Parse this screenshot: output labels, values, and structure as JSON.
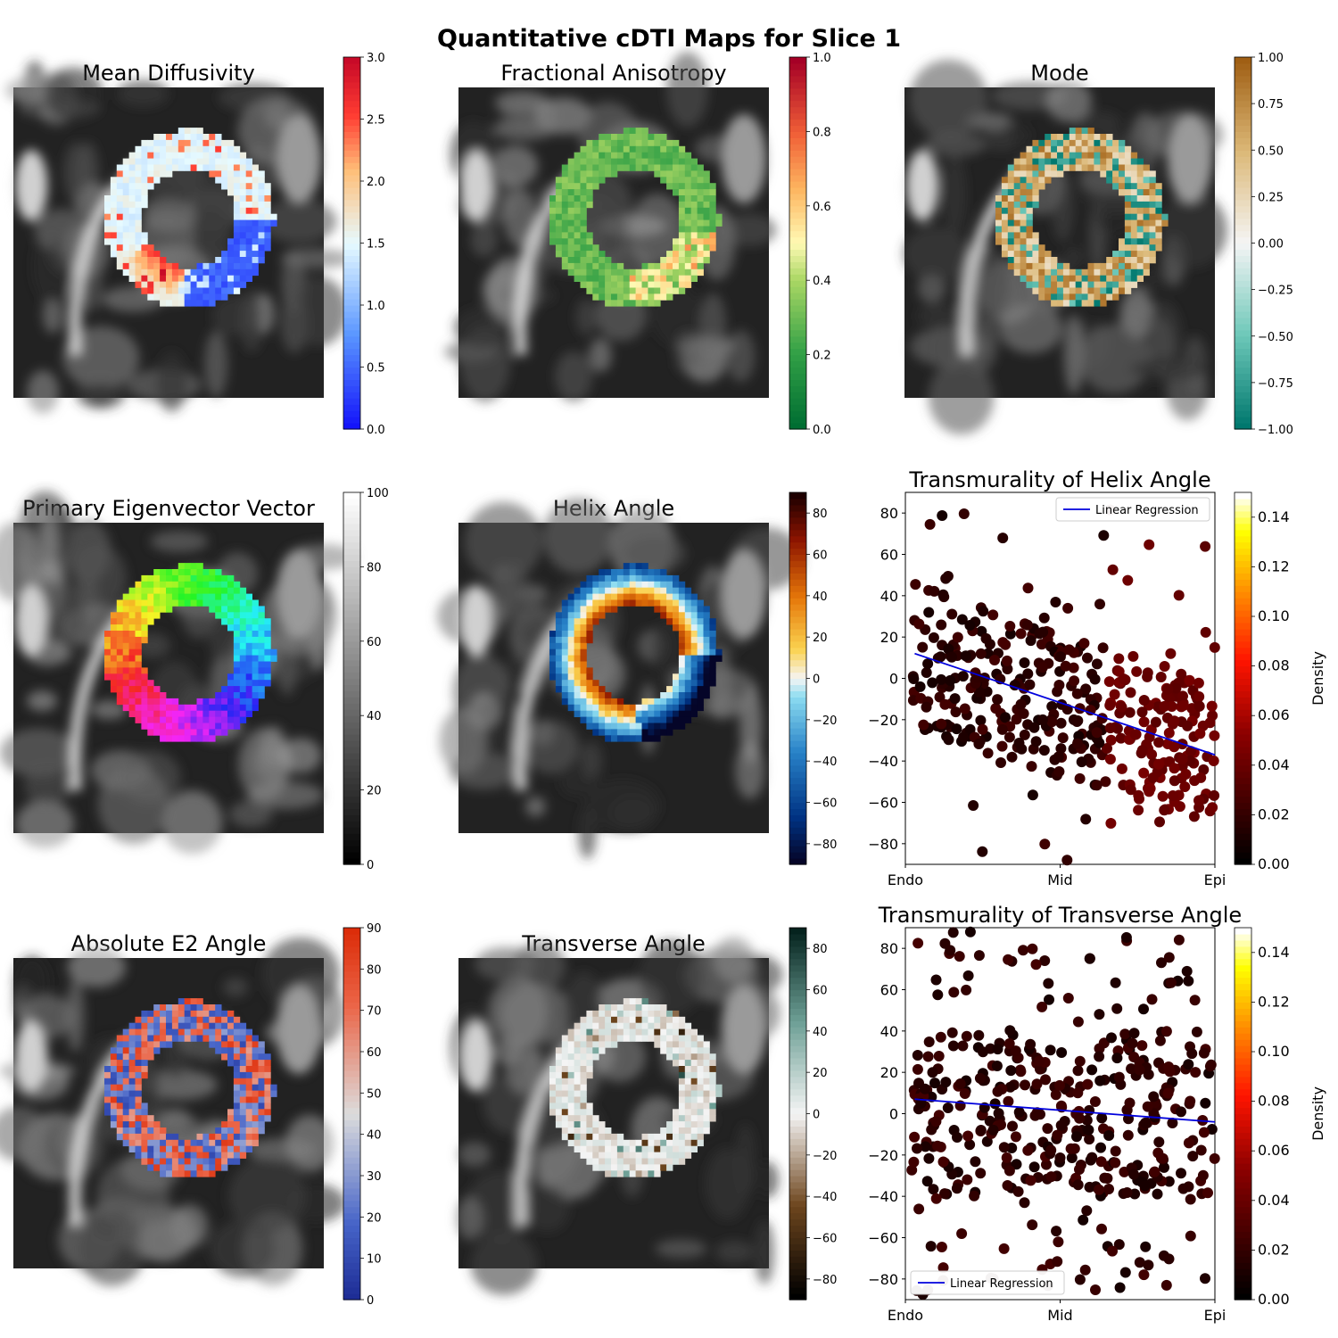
{
  "figure": {
    "title": "Quantitative cDTI Maps for Slice 1"
  },
  "chart_data": [
    {
      "type": "heatmap",
      "title": "Mean Diffusivity",
      "colormap": "bwr-like (blue-white-red)",
      "colorbar": {
        "range": [
          0,
          3.0
        ],
        "ticks": [
          "0.0",
          "0.5",
          "1.0",
          "1.5",
          "2.0",
          "2.5",
          "3.0"
        ]
      }
    },
    {
      "type": "heatmap",
      "title": "Fractional Anisotropy",
      "colormap": "RdYlGn reversed (green-yellow-red)",
      "colorbar": {
        "range": [
          0,
          1.0
        ],
        "ticks": [
          "0.0",
          "0.2",
          "0.4",
          "0.6",
          "0.8",
          "1.0"
        ]
      }
    },
    {
      "type": "heatmap",
      "title": "Mode",
      "colormap": "BrBG reversed (teal-white-brown)",
      "colorbar": {
        "range": [
          -1.0,
          1.0
        ],
        "ticks": [
          "−1.00",
          "−0.75",
          "−0.50",
          "−0.25",
          "0.00",
          "0.25",
          "0.50",
          "0.75",
          "1.00"
        ]
      }
    },
    {
      "type": "heatmap",
      "title": "Primary Eigenvector Vector",
      "colormap": "gray",
      "colorbar": {
        "range": [
          0,
          100
        ],
        "ticks": [
          "0",
          "20",
          "40",
          "60",
          "80",
          "100"
        ]
      }
    },
    {
      "type": "heatmap",
      "title": "Helix Angle",
      "colormap": "dark blue - cyan - white - orange - dark red",
      "colorbar": {
        "range": [
          -90,
          90
        ],
        "ticks": [
          "−80",
          "−60",
          "−40",
          "−20",
          "0",
          "20",
          "40",
          "60",
          "80"
        ]
      }
    },
    {
      "type": "scatter",
      "title": "Transmurality of Helix Angle",
      "x_ticks": [
        "Endo",
        "Mid",
        "Epi"
      ],
      "xlim": [
        0,
        1
      ],
      "ylim": [
        -90,
        90
      ],
      "y_ticks": [
        "−80",
        "−60",
        "−40",
        "−20",
        "0",
        "20",
        "40",
        "60",
        "80"
      ],
      "legend": {
        "label": "Linear Regression",
        "location": "upper right"
      },
      "regression": {
        "x": [
          0.03,
          1.0
        ],
        "y": [
          12,
          -37
        ]
      },
      "colorbar": {
        "label": "Density",
        "range": [
          0,
          0.15
        ],
        "ticks": [
          "0.00",
          "0.02",
          "0.04",
          "0.06",
          "0.08",
          "0.10",
          "0.12",
          "0.14"
        ]
      }
    },
    {
      "type": "heatmap",
      "title": "Absolute E2 Angle",
      "colormap": "coolwarm",
      "colorbar": {
        "range": [
          0,
          90
        ],
        "ticks": [
          "0",
          "10",
          "20",
          "30",
          "40",
          "50",
          "60",
          "70",
          "80",
          "90"
        ]
      }
    },
    {
      "type": "heatmap",
      "title": "Transverse Angle",
      "colormap": "brown - white - dark teal",
      "colorbar": {
        "range": [
          -90,
          90
        ],
        "ticks": [
          "−80",
          "−60",
          "−40",
          "−20",
          "0",
          "20",
          "40",
          "60",
          "80"
        ]
      }
    },
    {
      "type": "scatter",
      "title": "Transmurality of Transverse Angle",
      "x_ticks": [
        "Endo",
        "Mid",
        "Epi"
      ],
      "xlim": [
        0,
        1
      ],
      "ylim": [
        -90,
        90
      ],
      "y_ticks": [
        "−80",
        "−60",
        "−40",
        "−20",
        "0",
        "20",
        "40",
        "60",
        "80"
      ],
      "legend": {
        "label": "Linear Regression",
        "location": "lower left"
      },
      "regression": {
        "x": [
          0.03,
          1.0
        ],
        "y": [
          7,
          -4
        ]
      },
      "colorbar": {
        "label": "Density",
        "range": [
          0,
          0.15
        ],
        "ticks": [
          "0.00",
          "0.02",
          "0.04",
          "0.06",
          "0.08",
          "0.10",
          "0.12",
          "0.14"
        ]
      }
    }
  ]
}
